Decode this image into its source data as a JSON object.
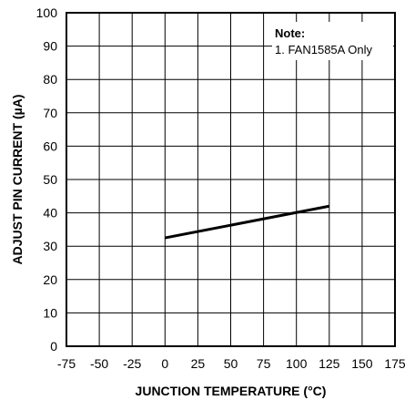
{
  "chart_data": {
    "type": "line",
    "xlabel": "JUNCTION TEMPERATURE (°C)",
    "ylabel": "ADJUST PIN CURRENT (µA)",
    "xlim": [
      -75,
      175
    ],
    "ylim": [
      0,
      100
    ],
    "x_ticks": [
      "-75",
      "-50",
      "-25",
      "0",
      "25",
      "50",
      "75",
      "100",
      "125",
      "150",
      "175"
    ],
    "y_ticks": [
      "0",
      "10",
      "20",
      "30",
      "40",
      "50",
      "60",
      "70",
      "80",
      "90",
      "100"
    ],
    "grid": true,
    "series": [
      {
        "x": [
          0,
          125
        ],
        "y": [
          32.5,
          42
        ]
      }
    ],
    "note": {
      "title": "Note:",
      "lines": [
        "1. FAN1585A Only"
      ]
    }
  }
}
